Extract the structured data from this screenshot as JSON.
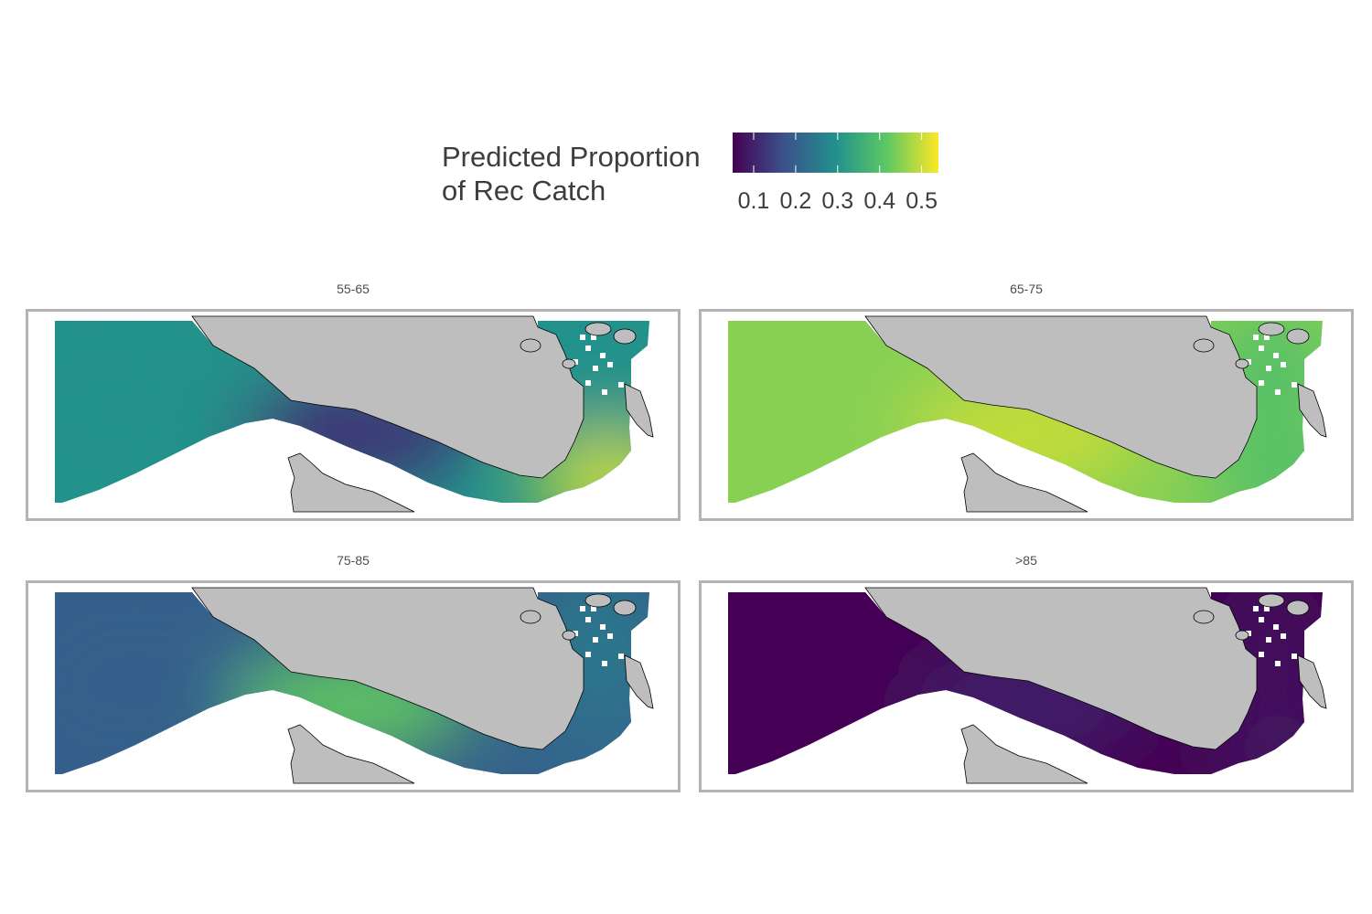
{
  "legend": {
    "title_line1": "Predicted Proportion",
    "title_line2": "of Rec Catch",
    "tick_labels": [
      "0.1",
      "0.2",
      "0.3",
      "0.4",
      "0.5"
    ],
    "tick_values": [
      0.1,
      0.2,
      0.3,
      0.4,
      0.5
    ],
    "range": [
      0.05,
      0.54
    ],
    "palette": [
      "#440154",
      "#3b528b",
      "#21908d",
      "#5dc863",
      "#fde725"
    ]
  },
  "colors": {
    "land": "#bebebe",
    "land_outline": "#000000",
    "panel_border": "#b3b3b3",
    "background": "#ffffff"
  },
  "panels": [
    {
      "label": "55-65",
      "values": {
        "west": 0.3,
        "strait": 0.12,
        "south": 0.5,
        "north": 0.3
      }
    },
    {
      "label": "65-75",
      "values": {
        "west": 0.45,
        "strait": 0.5,
        "south": 0.4,
        "north": 0.4
      }
    },
    {
      "label": "75-85",
      "values": {
        "west": 0.2,
        "strait": 0.42,
        "south": 0.22,
        "north": 0.25
      }
    },
    {
      "label": ">85",
      "values": {
        "west": 0.05,
        "strait": 0.1,
        "south": 0.08,
        "north": 0.07
      }
    }
  ]
}
